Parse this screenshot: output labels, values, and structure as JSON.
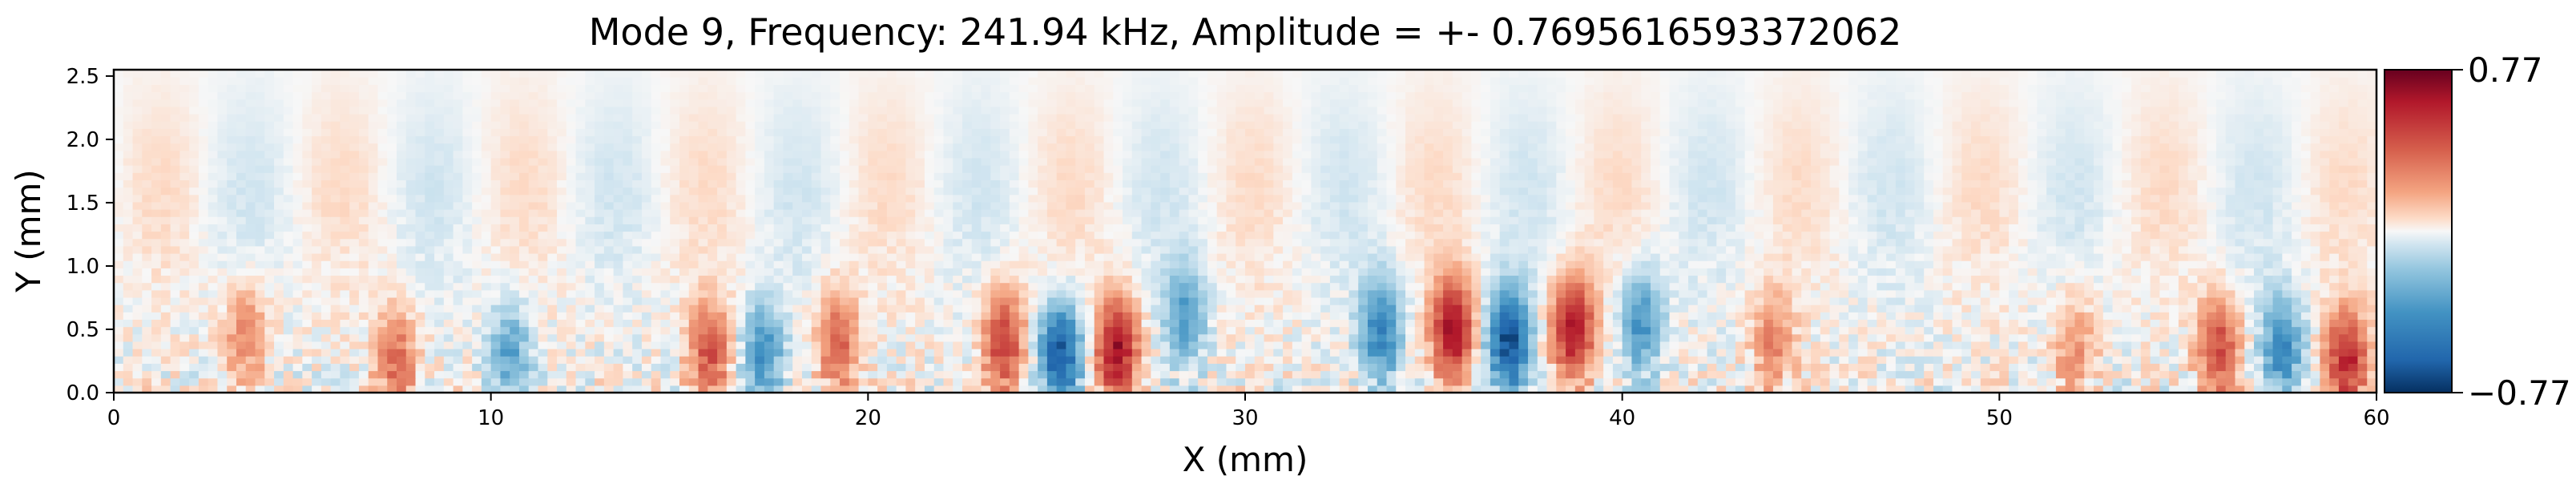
{
  "chart_data": {
    "type": "heatmap",
    "title": "Mode 9, Frequency: 241.94 kHz, Amplitude = +- 0.7695616593372062",
    "xlabel": "X (mm)",
    "ylabel": "Y (mm)",
    "xlim": [
      0,
      60
    ],
    "ylim": [
      0,
      2.55
    ],
    "x_ticks": [
      0,
      10,
      20,
      30,
      40,
      50,
      60
    ],
    "x_tick_labels": [
      "0",
      "10",
      "20",
      "30",
      "40",
      "50",
      "60"
    ],
    "y_ticks": [
      0.0,
      0.5,
      1.0,
      1.5,
      2.0,
      2.5
    ],
    "y_tick_labels": [
      "0.0",
      "0.5",
      "1.0",
      "1.5",
      "2.0",
      "2.5"
    ],
    "colormap": "RdBu_r",
    "colors": {
      "low": "#053061",
      "mid": "#f7f7f7",
      "high": "#67001f"
    },
    "value_range": [
      -0.77,
      0.77
    ],
    "colorbar": {
      "ticks": [
        0.77,
        -0.77
      ],
      "tick_labels": [
        "0.77",
        "−0.77"
      ]
    },
    "amplitude": 0.7695616593372062,
    "structure": "alternating red/blue vertical lobes concentrated near the wall (Y < 1 mm), strongest between X = 23 and 40 mm, fading toward the top of the field",
    "lobe_samples": [
      {
        "x": 3.5,
        "y": 0.45,
        "sign": "pos",
        "strength": 0.35
      },
      {
        "x": 7.5,
        "y": 0.25,
        "sign": "pos",
        "strength": 0.45
      },
      {
        "x": 10.5,
        "y": 0.3,
        "sign": "neg",
        "strength": 0.4
      },
      {
        "x": 15.8,
        "y": 0.3,
        "sign": "pos",
        "strength": 0.55
      },
      {
        "x": 17.2,
        "y": 0.3,
        "sign": "neg",
        "strength": 0.5
      },
      {
        "x": 19.2,
        "y": 0.4,
        "sign": "pos",
        "strength": 0.5
      },
      {
        "x": 23.6,
        "y": 0.4,
        "sign": "pos",
        "strength": 0.65
      },
      {
        "x": 25.1,
        "y": 0.3,
        "sign": "neg",
        "strength": 0.85
      },
      {
        "x": 26.6,
        "y": 0.35,
        "sign": "pos",
        "strength": 0.85
      },
      {
        "x": 28.4,
        "y": 0.6,
        "sign": "neg",
        "strength": 0.45
      },
      {
        "x": 33.6,
        "y": 0.5,
        "sign": "neg",
        "strength": 0.6
      },
      {
        "x": 35.5,
        "y": 0.5,
        "sign": "pos",
        "strength": 0.85
      },
      {
        "x": 37.0,
        "y": 0.4,
        "sign": "neg",
        "strength": 0.9
      },
      {
        "x": 38.7,
        "y": 0.5,
        "sign": "pos",
        "strength": 0.85
      },
      {
        "x": 40.5,
        "y": 0.55,
        "sign": "neg",
        "strength": 0.5
      },
      {
        "x": 44.0,
        "y": 0.4,
        "sign": "pos",
        "strength": 0.35
      },
      {
        "x": 52.0,
        "y": 0.35,
        "sign": "pos",
        "strength": 0.3
      },
      {
        "x": 55.8,
        "y": 0.35,
        "sign": "pos",
        "strength": 0.6
      },
      {
        "x": 57.5,
        "y": 0.35,
        "sign": "neg",
        "strength": 0.55
      },
      {
        "x": 59.2,
        "y": 0.25,
        "sign": "pos",
        "strength": 0.75
      }
    ]
  }
}
